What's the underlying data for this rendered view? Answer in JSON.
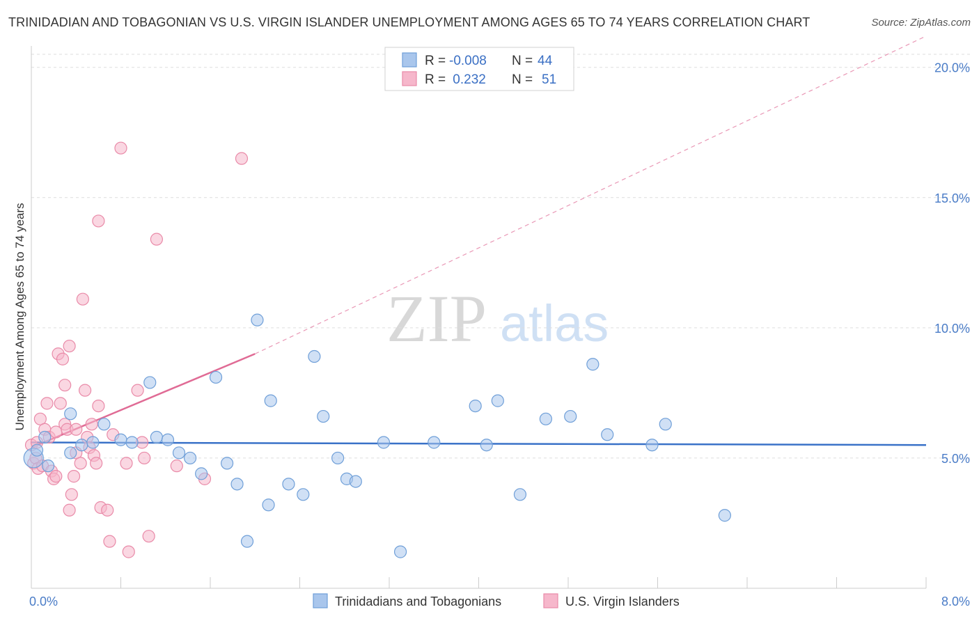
{
  "title": "TRINIDADIAN AND TOBAGONIAN VS U.S. VIRGIN ISLANDER UNEMPLOYMENT AMONG AGES 65 TO 74 YEARS CORRELATION CHART",
  "source": "Source: ZipAtlas.com",
  "watermark": {
    "zip": "ZIP",
    "atlas": "atlas"
  },
  "colors": {
    "blue_fill": "#a9c6ec",
    "blue_stroke": "#6f9fd8",
    "blue_line": "#3a72c8",
    "pink_fill": "#f6b7cb",
    "pink_stroke": "#e98aa8",
    "pink_line": "#e06b95",
    "tick_text": "#4a7cc7"
  },
  "legend": {
    "rows": [
      {
        "r_label": "R =",
        "r_value": "-0.008",
        "n_label": "N =",
        "n_value": "44"
      },
      {
        "r_label": "R =",
        "r_value": " 0.232",
        "n_label": "N =",
        "n_value": "51"
      }
    ]
  },
  "bottom_legend": [
    "Trinidadians and Tobagonians",
    "U.S. Virgin Islanders"
  ],
  "chart_data": {
    "type": "scatter",
    "xlabel": "",
    "ylabel": "Unemployment Among Ages 65 to 74 years",
    "xlim": [
      0,
      8
    ],
    "ylim": [
      0,
      20.5
    ],
    "x_tick_labels": [
      "0.0%",
      "8.0%"
    ],
    "y_ticks": [
      5,
      10,
      15,
      20
    ],
    "y_tick_labels": [
      "5.0%",
      "10.0%",
      "15.0%",
      "20.0%"
    ],
    "grid": "horizontal dashed",
    "legend_position": "top-center",
    "series": [
      {
        "name": "Trinidadians and Tobagonians",
        "color": "#a9c6ec",
        "trend": {
          "x": [
            0,
            8
          ],
          "y": [
            5.6,
            5.5
          ],
          "style": "solid"
        },
        "points": [
          {
            "x": 0.02,
            "y": 5.0,
            "big": true
          },
          {
            "x": 0.05,
            "y": 5.3
          },
          {
            "x": 0.12,
            "y": 5.8
          },
          {
            "x": 0.15,
            "y": 4.7
          },
          {
            "x": 0.35,
            "y": 6.7
          },
          {
            "x": 0.35,
            "y": 5.2
          },
          {
            "x": 0.45,
            "y": 5.5
          },
          {
            "x": 0.55,
            "y": 5.6
          },
          {
            "x": 0.65,
            "y": 6.3
          },
          {
            "x": 0.8,
            "y": 5.7
          },
          {
            "x": 0.9,
            "y": 5.6
          },
          {
            "x": 1.06,
            "y": 7.9
          },
          {
            "x": 1.12,
            "y": 5.8
          },
          {
            "x": 1.22,
            "y": 5.7
          },
          {
            "x": 1.32,
            "y": 5.2
          },
          {
            "x": 1.42,
            "y": 5.0
          },
          {
            "x": 1.52,
            "y": 4.4
          },
          {
            "x": 1.65,
            "y": 8.1
          },
          {
            "x": 1.75,
            "y": 4.8
          },
          {
            "x": 1.84,
            "y": 4.0
          },
          {
            "x": 1.93,
            "y": 1.8
          },
          {
            "x": 2.02,
            "y": 10.3
          },
          {
            "x": 2.12,
            "y": 3.2
          },
          {
            "x": 2.14,
            "y": 7.2
          },
          {
            "x": 2.3,
            "y": 4.0
          },
          {
            "x": 2.43,
            "y": 3.6
          },
          {
            "x": 2.53,
            "y": 8.9
          },
          {
            "x": 2.61,
            "y": 6.6
          },
          {
            "x": 2.74,
            "y": 5.0
          },
          {
            "x": 2.82,
            "y": 4.2
          },
          {
            "x": 2.9,
            "y": 4.1
          },
          {
            "x": 3.15,
            "y": 5.6
          },
          {
            "x": 3.3,
            "y": 1.4
          },
          {
            "x": 3.6,
            "y": 5.6
          },
          {
            "x": 3.97,
            "y": 7.0
          },
          {
            "x": 4.07,
            "y": 5.5
          },
          {
            "x": 4.17,
            "y": 7.2
          },
          {
            "x": 4.37,
            "y": 3.6
          },
          {
            "x": 4.6,
            "y": 6.5
          },
          {
            "x": 4.82,
            "y": 6.6
          },
          {
            "x": 5.02,
            "y": 8.6
          },
          {
            "x": 5.15,
            "y": 5.9
          },
          {
            "x": 5.55,
            "y": 5.5
          },
          {
            "x": 5.67,
            "y": 6.3
          },
          {
            "x": 6.2,
            "y": 2.8
          }
        ]
      },
      {
        "name": "U.S. Virgin Islanders",
        "color": "#f6b7cb",
        "trend": {
          "x": [
            0,
            2.0
          ],
          "y": [
            5.4,
            9.0
          ],
          "style": "solid",
          "extended_to": [
            8.0,
            21.2
          ],
          "extended_style": "dashed"
        },
        "points": [
          {
            "x": 0.0,
            "y": 5.5
          },
          {
            "x": 0.02,
            "y": 4.8
          },
          {
            "x": 0.04,
            "y": 5.0
          },
          {
            "x": 0.06,
            "y": 4.6
          },
          {
            "x": 0.08,
            "y": 6.5
          },
          {
            "x": 0.1,
            "y": 4.7
          },
          {
            "x": 0.12,
            "y": 6.1
          },
          {
            "x": 0.14,
            "y": 7.1
          },
          {
            "x": 0.16,
            "y": 5.8
          },
          {
            "x": 0.18,
            "y": 4.5
          },
          {
            "x": 0.2,
            "y": 4.2
          },
          {
            "x": 0.22,
            "y": 6.0
          },
          {
            "x": 0.22,
            "y": 4.3
          },
          {
            "x": 0.24,
            "y": 9.0
          },
          {
            "x": 0.26,
            "y": 7.1
          },
          {
            "x": 0.28,
            "y": 8.8
          },
          {
            "x": 0.3,
            "y": 6.3
          },
          {
            "x": 0.3,
            "y": 7.8
          },
          {
            "x": 0.32,
            "y": 6.1
          },
          {
            "x": 0.34,
            "y": 9.3
          },
          {
            "x": 0.34,
            "y": 3.0
          },
          {
            "x": 0.36,
            "y": 3.6
          },
          {
            "x": 0.38,
            "y": 4.3
          },
          {
            "x": 0.4,
            "y": 6.1
          },
          {
            "x": 0.4,
            "y": 5.2
          },
          {
            "x": 0.44,
            "y": 4.8
          },
          {
            "x": 0.46,
            "y": 11.1
          },
          {
            "x": 0.48,
            "y": 7.6
          },
          {
            "x": 0.5,
            "y": 5.8
          },
          {
            "x": 0.52,
            "y": 5.4
          },
          {
            "x": 0.54,
            "y": 6.3
          },
          {
            "x": 0.56,
            "y": 5.1
          },
          {
            "x": 0.58,
            "y": 4.8
          },
          {
            "x": 0.6,
            "y": 7.0
          },
          {
            "x": 0.6,
            "y": 14.1
          },
          {
            "x": 0.62,
            "y": 3.1
          },
          {
            "x": 0.68,
            "y": 3.0
          },
          {
            "x": 0.7,
            "y": 1.8
          },
          {
            "x": 0.73,
            "y": 5.9
          },
          {
            "x": 0.8,
            "y": 16.9
          },
          {
            "x": 0.85,
            "y": 4.8
          },
          {
            "x": 0.87,
            "y": 1.4
          },
          {
            "x": 0.95,
            "y": 7.6
          },
          {
            "x": 0.99,
            "y": 5.6
          },
          {
            "x": 1.01,
            "y": 5.0
          },
          {
            "x": 1.05,
            "y": 2.0
          },
          {
            "x": 1.12,
            "y": 13.4
          },
          {
            "x": 1.3,
            "y": 4.7
          },
          {
            "x": 1.55,
            "y": 4.2
          },
          {
            "x": 1.88,
            "y": 16.5
          },
          {
            "x": 0.05,
            "y": 5.6
          }
        ]
      }
    ]
  }
}
